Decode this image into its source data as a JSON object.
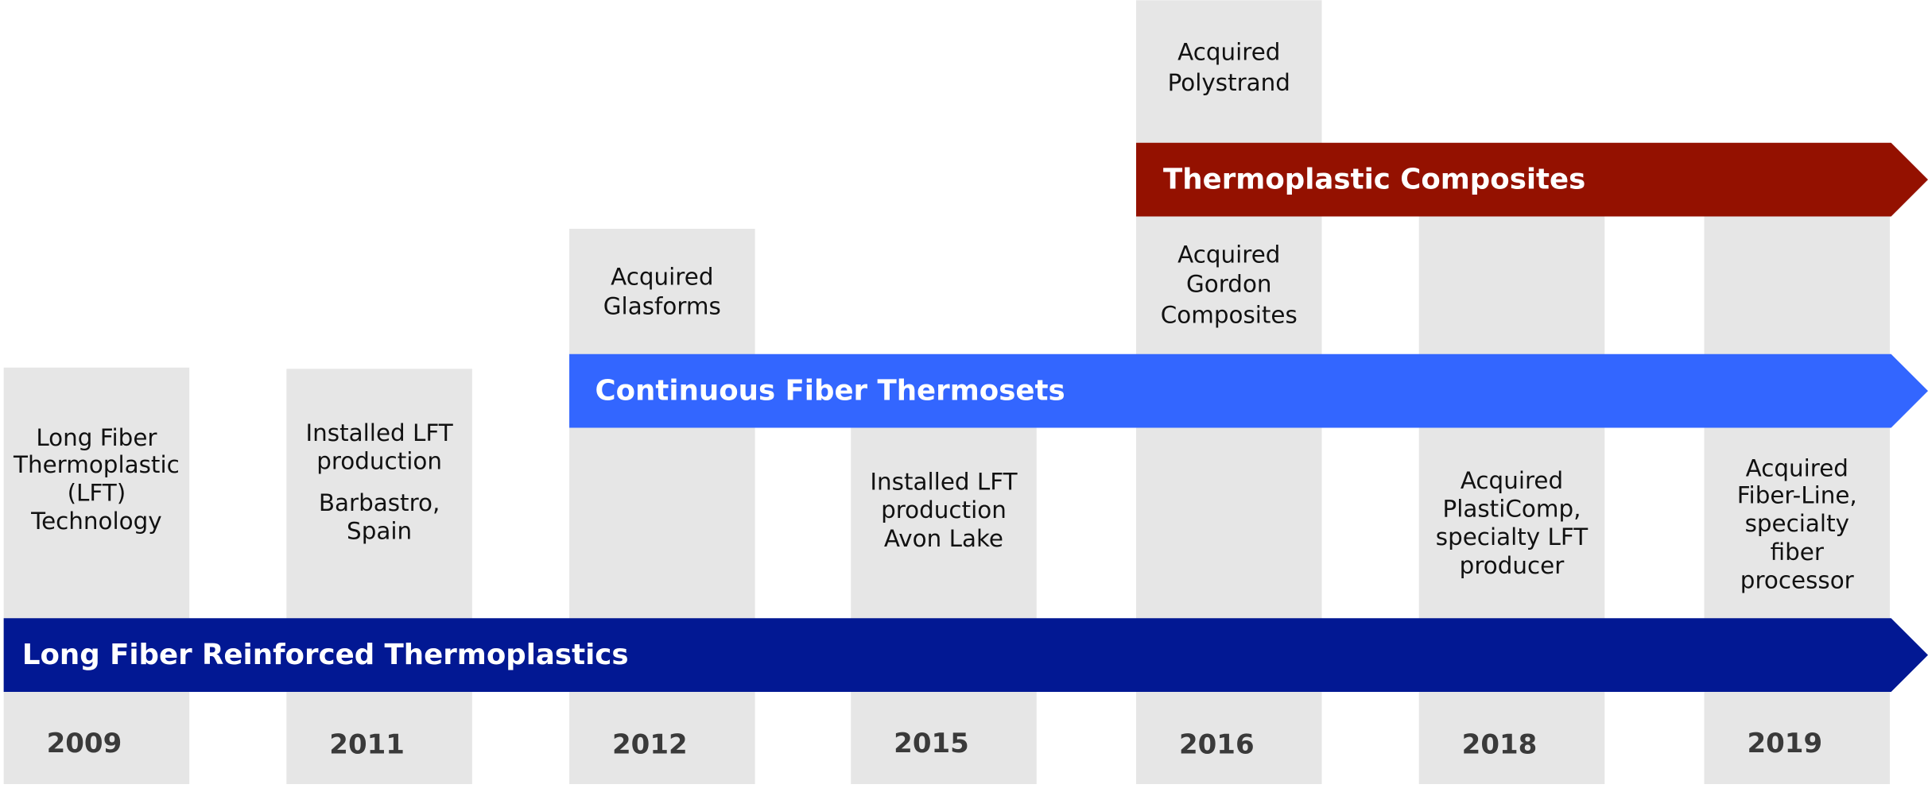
{
  "columns": [
    {
      "year": "2009",
      "events": [
        [
          "Long Fiber",
          "Thermoplastic",
          "(LFT)",
          "Technology"
        ]
      ]
    },
    {
      "year": "2011",
      "events": [
        [
          "Installed LFT",
          "production"
        ],
        [
          "Barbastro,",
          "Spain"
        ]
      ]
    },
    {
      "year": "2012",
      "events": [
        [
          "Acquired",
          "Glasforms"
        ]
      ]
    },
    {
      "year": "2015",
      "events": [
        [
          "Installed LFT",
          "production",
          "Avon Lake"
        ]
      ]
    },
    {
      "year": "2016",
      "events": [
        [
          "Acquired",
          "Polystrand"
        ],
        [
          "Acquired",
          "Gordon",
          "Composites"
        ]
      ]
    },
    {
      "year": "2018",
      "events": [
        [
          "Acquired",
          "PlastiComp,",
          "specialty LFT",
          "producer"
        ]
      ]
    },
    {
      "year": "2019",
      "events": [
        [
          "Acquired",
          "Fiber-Line,",
          "specialty",
          "fiber",
          "processor"
        ]
      ]
    }
  ],
  "bands": [
    {
      "label": "Thermoplastic Composites",
      "color": "#941100"
    },
    {
      "label": "Continuous Fiber Thermosets",
      "color": "#3366ff"
    },
    {
      "label": "Long Fiber Reinforced Thermoplastics",
      "color": "#021893"
    }
  ]
}
